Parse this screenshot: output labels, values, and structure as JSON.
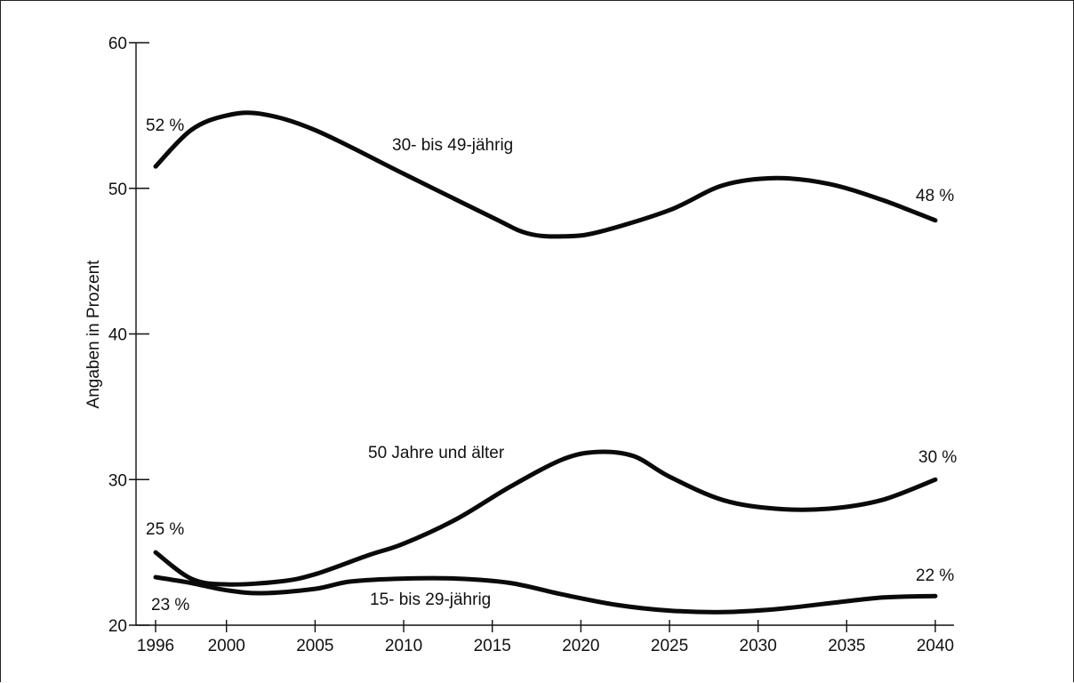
{
  "chart_data": {
    "type": "line",
    "ylabel": "Angaben in Prozent",
    "xlabel": "",
    "title": "",
    "ylim": [
      20,
      60
    ],
    "yticks": [
      20,
      30,
      40,
      50,
      60
    ],
    "xlim": [
      1996,
      2040
    ],
    "xticks": [
      1996,
      2000,
      2005,
      2010,
      2015,
      2020,
      2025,
      2030,
      2035,
      2040
    ],
    "series": [
      {
        "name": "30- bis 49-jährig",
        "x": [
          1996,
          1998,
          2000,
          2002,
          2005,
          2010,
          2015,
          2017,
          2019,
          2021,
          2025,
          2028,
          2031,
          2034,
          2037,
          2040
        ],
        "y": [
          51.5,
          54.0,
          55.0,
          55.1,
          54.0,
          51.0,
          48.0,
          46.9,
          46.7,
          47.0,
          48.5,
          50.2,
          50.7,
          50.3,
          49.2,
          47.8
        ],
        "start_label": "52 %",
        "end_label": "48 %"
      },
      {
        "name": "50 Jahre und älter",
        "x": [
          1996,
          1998,
          2000,
          2003,
          2005,
          2008,
          2010,
          2013,
          2016,
          2019,
          2021,
          2023,
          2025,
          2028,
          2031,
          2034,
          2037,
          2040
        ],
        "y": [
          25.0,
          23.2,
          22.8,
          23.0,
          23.5,
          24.8,
          25.6,
          27.3,
          29.5,
          31.4,
          31.9,
          31.6,
          30.2,
          28.6,
          28.0,
          28.0,
          28.6,
          30.0
        ],
        "start_label": "25 %",
        "end_label": "30 %"
      },
      {
        "name": "15- bis 29-jährig",
        "x": [
          1996,
          1998,
          2000,
          2002,
          2005,
          2007,
          2010,
          2013,
          2016,
          2019,
          2022,
          2025,
          2028,
          2031,
          2034,
          2037,
          2040
        ],
        "y": [
          23.3,
          22.9,
          22.4,
          22.2,
          22.5,
          23.0,
          23.2,
          23.2,
          22.9,
          22.1,
          21.4,
          21.0,
          20.9,
          21.1,
          21.5,
          21.9,
          22.0
        ],
        "start_label": "23 %",
        "end_label": "22 %"
      }
    ]
  }
}
